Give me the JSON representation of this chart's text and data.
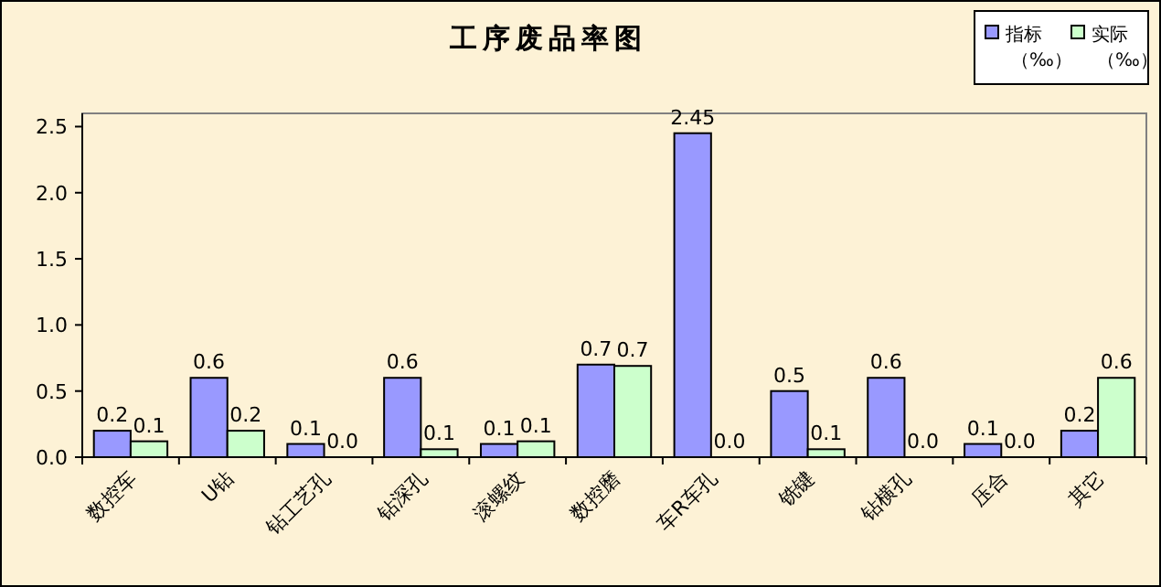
{
  "chart_data": {
    "type": "bar",
    "title": "工序废品率图",
    "categories": [
      "数控车",
      "U钻",
      "钻工艺孔",
      "钻深孔",
      "滚螺纹",
      "数控磨",
      "车R车孔",
      "铣键",
      "钻横孔",
      "压合",
      "其它"
    ],
    "series": [
      {
        "name": "指标（‰）",
        "color": "#9999ff",
        "values": [
          0.2,
          0.6,
          0.1,
          0.6,
          0.1,
          0.7,
          2.45,
          0.5,
          0.6,
          0.1,
          0.2
        ],
        "value_labels": [
          "0.2",
          "0.6",
          "0.1",
          "0.6",
          "0.1",
          "0.7",
          "2.45",
          "0.5",
          "0.6",
          "0.1",
          "0.2"
        ]
      },
      {
        "name": "实际（‰）",
        "color": "#ccffcc",
        "values": [
          0.12,
          0.2,
          0.0,
          0.06,
          0.12,
          0.69,
          0.0,
          0.06,
          0.0,
          0.0,
          0.6
        ],
        "value_labels": [
          "0.1",
          "0.2",
          "0.0",
          "0.1",
          "0.1",
          "0.7",
          "0.0",
          "0.1",
          "0.0",
          "0.0",
          "0.6"
        ]
      }
    ],
    "ylim": [
      0,
      2.6
    ],
    "yticks": [
      {
        "value": 0,
        "label": "0.0"
      },
      {
        "value": 0.5,
        "label": "0.5"
      },
      {
        "value": 1,
        "label": "1.0"
      },
      {
        "value": 1.5,
        "label": "1.5"
      },
      {
        "value": 2,
        "label": "2.0"
      },
      {
        "value": 2.5,
        "label": "2.5"
      }
    ],
    "grid": false,
    "legend": "top right"
  }
}
